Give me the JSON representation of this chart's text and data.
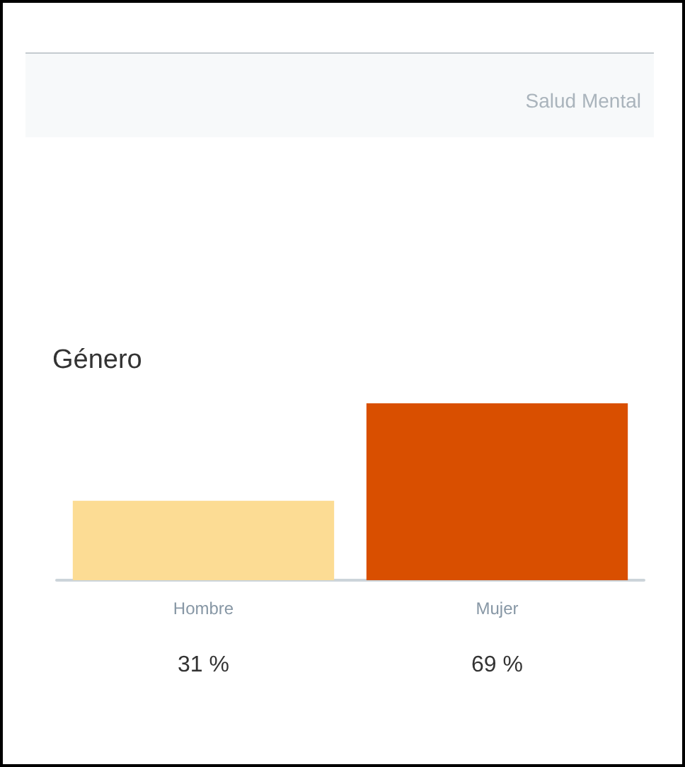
{
  "chart_data": {
    "type": "bar",
    "title": "Género",
    "subtitle": "Salud Mental",
    "categories": [
      "Hombre",
      "Mujer"
    ],
    "values": [
      31,
      69
    ],
    "colors": [
      "#fcdc94",
      "#d94f00"
    ],
    "value_labels": [
      "31 %",
      "69 %"
    ]
  }
}
